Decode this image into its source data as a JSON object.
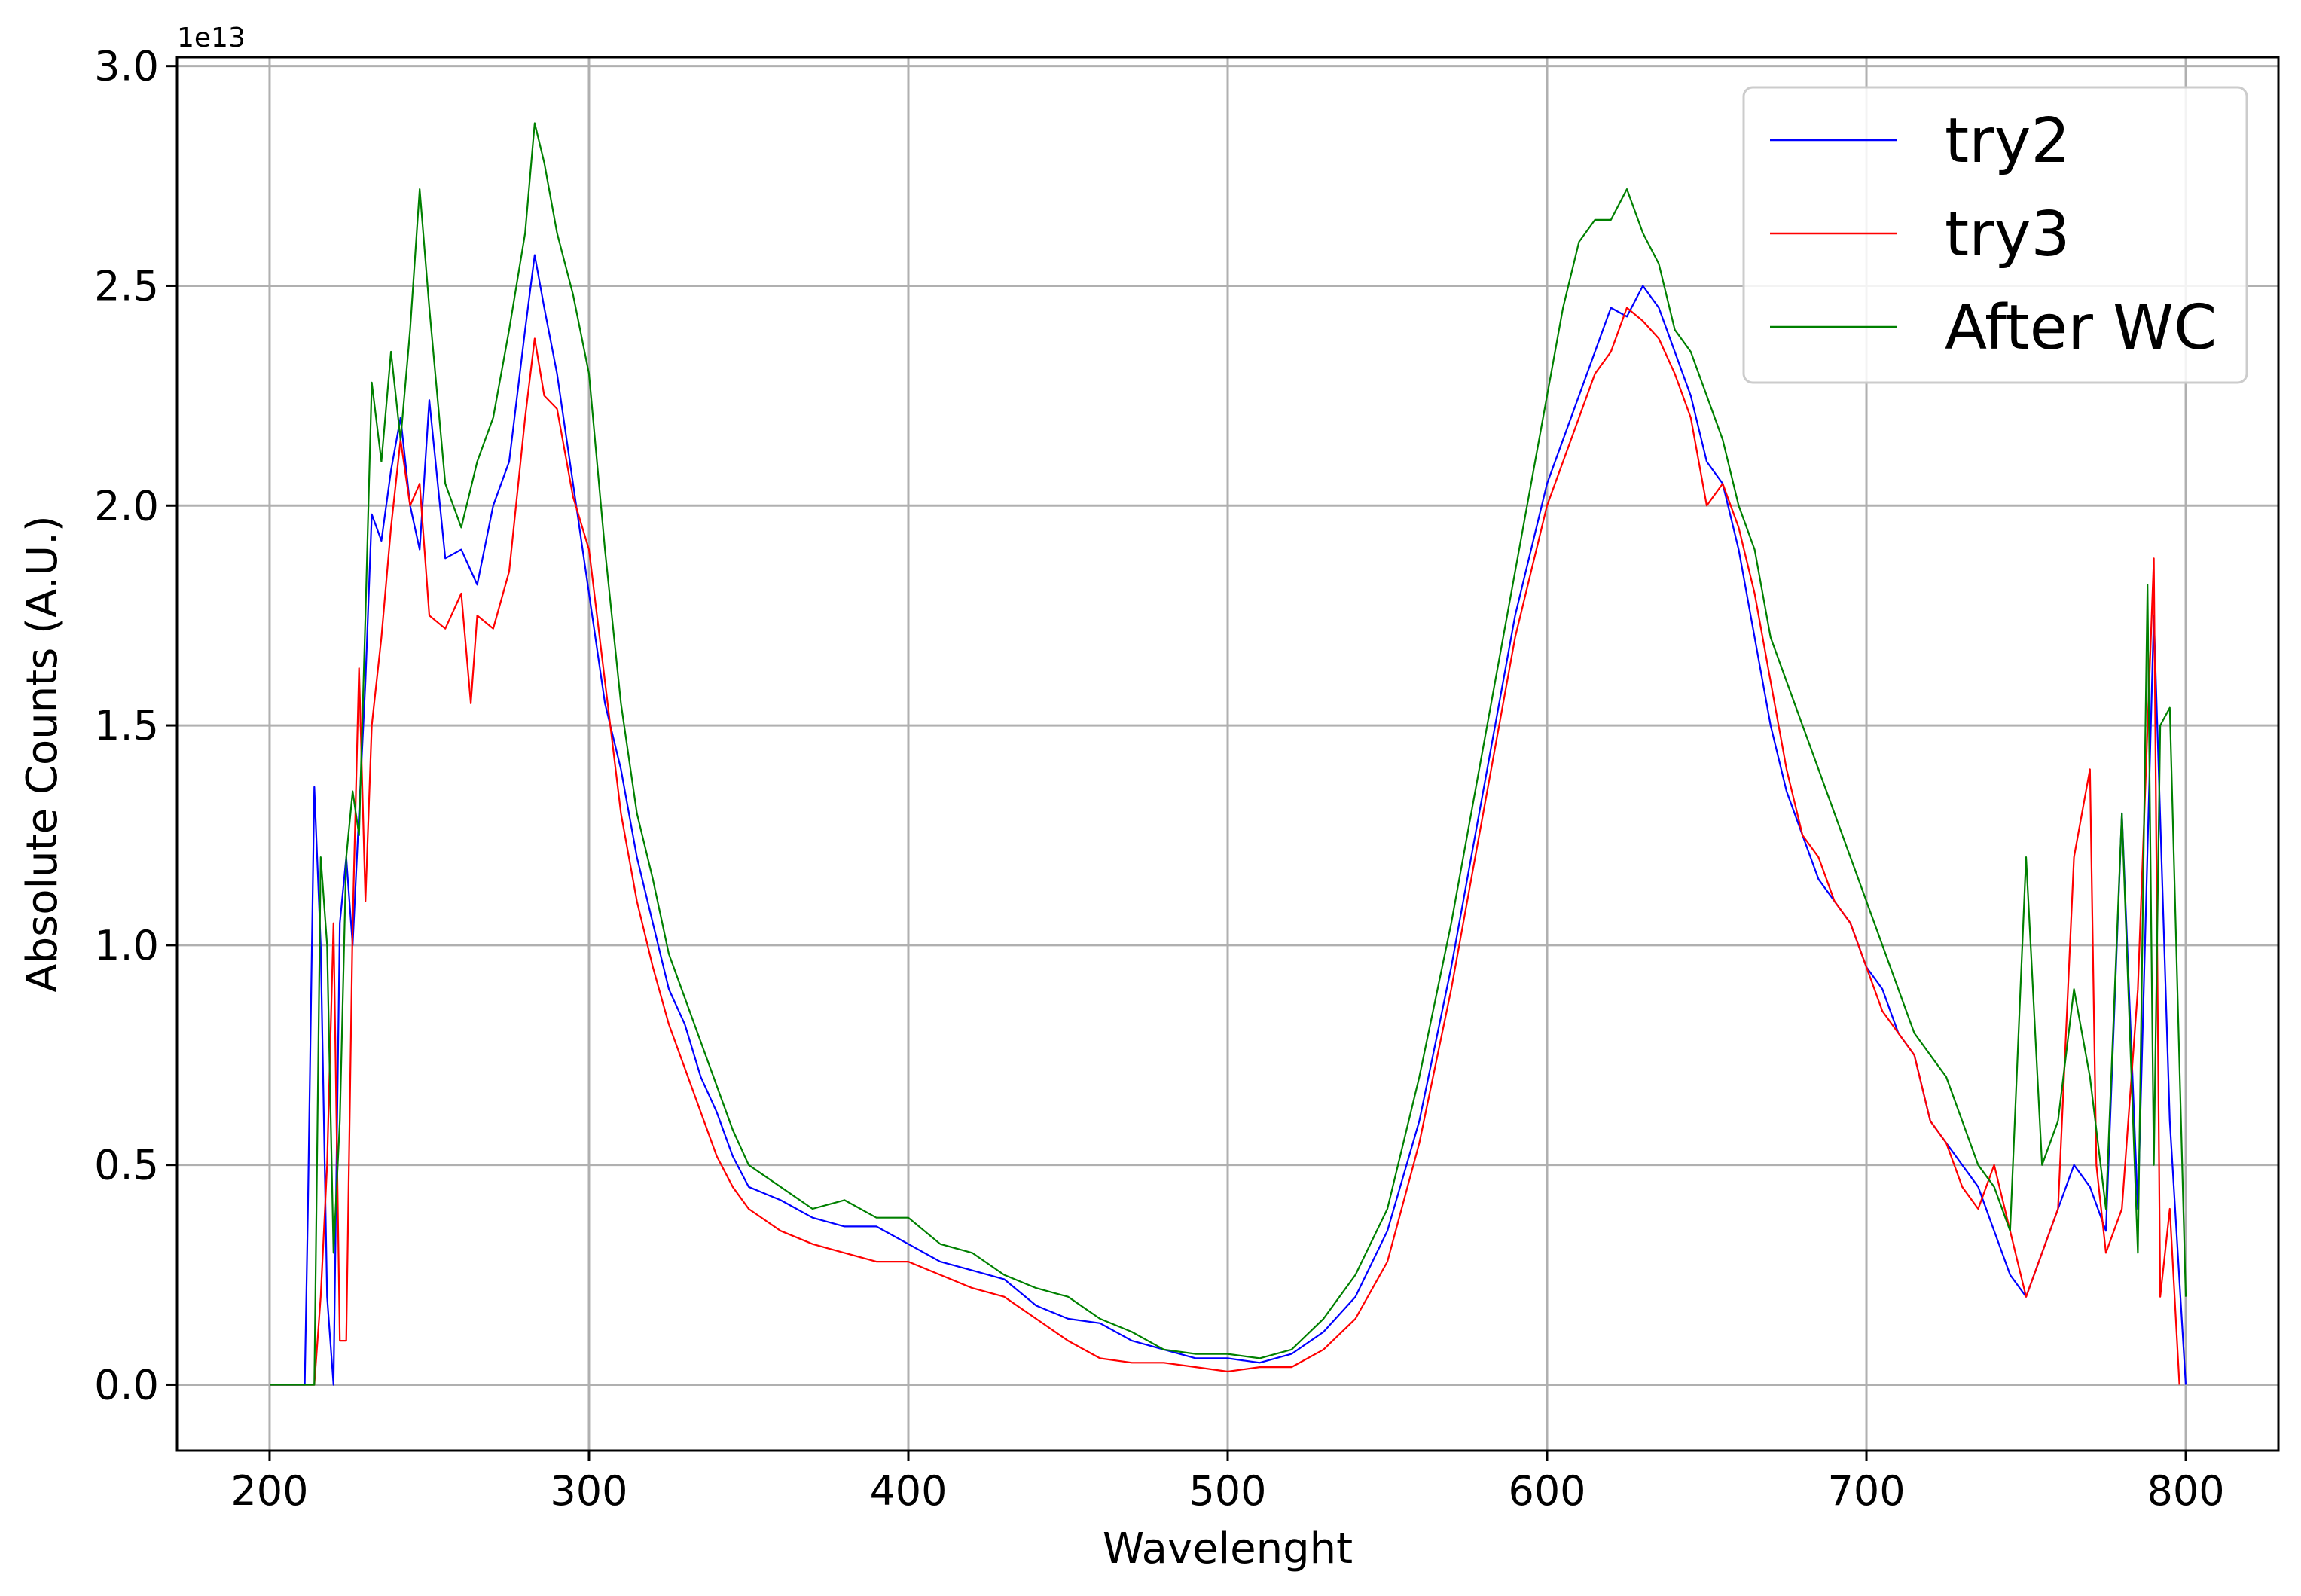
{
  "chart_data": {
    "type": "line",
    "title": "",
    "xlabel": "Wavelenght",
    "ylabel": "Absolute Counts (A.U.)",
    "y_offset_label": "1e13",
    "xlim": [
      171,
      829
    ],
    "ylim": [
      -0.15,
      3.02
    ],
    "xticks": [
      200,
      300,
      400,
      500,
      600,
      700,
      800
    ],
    "yticks": [
      0.0,
      0.5,
      1.0,
      1.5,
      2.0,
      2.5,
      3.0
    ],
    "ytick_labels": [
      "0.0",
      "0.5",
      "1.0",
      "1.5",
      "2.0",
      "2.5",
      "3.0"
    ],
    "grid": true,
    "legend_position": "top-right",
    "series": [
      {
        "name": "try2",
        "color": "#0000ff",
        "x": [
          200,
          211,
          212,
          214,
          216,
          218,
          220,
          222,
          224,
          226,
          228,
          230,
          232,
          235,
          238,
          241,
          244,
          247,
          250,
          255,
          260,
          265,
          270,
          275,
          280,
          283,
          286,
          290,
          295,
          300,
          305,
          310,
          315,
          320,
          325,
          330,
          335,
          340,
          345,
          350,
          360,
          370,
          380,
          390,
          400,
          410,
          420,
          430,
          440,
          450,
          460,
          470,
          480,
          490,
          500,
          510,
          520,
          530,
          540,
          550,
          560,
          570,
          580,
          590,
          600,
          605,
          610,
          615,
          620,
          625,
          630,
          635,
          640,
          645,
          650,
          655,
          660,
          665,
          670,
          675,
          680,
          685,
          690,
          695,
          700,
          705,
          710,
          715,
          720,
          725,
          730,
          735,
          740,
          745,
          750,
          755,
          760,
          765,
          770,
          775,
          780,
          785,
          790,
          795,
          800
        ],
        "y": [
          0.0,
          0.0,
          0.4,
          1.36,
          1.0,
          0.2,
          0.0,
          1.05,
          1.2,
          1.0,
          1.3,
          1.6,
          1.98,
          1.92,
          2.08,
          2.2,
          2.0,
          1.9,
          2.24,
          1.88,
          1.9,
          1.82,
          2.0,
          2.1,
          2.4,
          2.57,
          2.45,
          2.3,
          2.05,
          1.8,
          1.55,
          1.4,
          1.2,
          1.05,
          0.9,
          0.82,
          0.7,
          0.62,
          0.52,
          0.45,
          0.42,
          0.38,
          0.36,
          0.36,
          0.32,
          0.28,
          0.26,
          0.24,
          0.18,
          0.15,
          0.14,
          0.1,
          0.08,
          0.06,
          0.06,
          0.05,
          0.07,
          0.12,
          0.2,
          0.35,
          0.6,
          0.95,
          1.35,
          1.75,
          2.05,
          2.15,
          2.25,
          2.35,
          2.45,
          2.43,
          2.5,
          2.45,
          2.35,
          2.25,
          2.1,
          2.05,
          1.9,
          1.7,
          1.5,
          1.35,
          1.25,
          1.15,
          1.1,
          1.05,
          0.95,
          0.9,
          0.8,
          0.75,
          0.6,
          0.55,
          0.5,
          0.45,
          0.35,
          0.25,
          0.2,
          0.3,
          0.4,
          0.5,
          0.45,
          0.35,
          1.3,
          0.4,
          1.75,
          0.6,
          0.0
        ]
      },
      {
        "name": "try3",
        "color": "#ff0000",
        "x": [
          200,
          214,
          216,
          218,
          220,
          222,
          224,
          226,
          228,
          230,
          232,
          235,
          238,
          241,
          244,
          247,
          250,
          255,
          260,
          263,
          265,
          270,
          275,
          280,
          283,
          286,
          290,
          295,
          300,
          305,
          310,
          315,
          320,
          325,
          330,
          335,
          340,
          345,
          350,
          360,
          370,
          380,
          390,
          400,
          410,
          420,
          430,
          440,
          450,
          460,
          470,
          480,
          490,
          500,
          510,
          520,
          530,
          540,
          550,
          560,
          570,
          580,
          590,
          600,
          605,
          610,
          615,
          620,
          625,
          630,
          635,
          640,
          645,
          650,
          655,
          660,
          665,
          670,
          675,
          680,
          685,
          690,
          695,
          700,
          705,
          710,
          715,
          720,
          725,
          730,
          735,
          740,
          745,
          750,
          755,
          760,
          765,
          770,
          772,
          775,
          780,
          785,
          790,
          792,
          795,
          798
        ],
        "y": [
          0.0,
          0.0,
          0.2,
          0.5,
          1.05,
          0.1,
          0.1,
          1.05,
          1.63,
          1.1,
          1.5,
          1.7,
          1.95,
          2.15,
          2.0,
          2.05,
          1.75,
          1.72,
          1.8,
          1.55,
          1.75,
          1.72,
          1.85,
          2.2,
          2.38,
          2.25,
          2.22,
          2.02,
          1.9,
          1.6,
          1.3,
          1.1,
          0.95,
          0.82,
          0.72,
          0.62,
          0.52,
          0.45,
          0.4,
          0.35,
          0.32,
          0.3,
          0.28,
          0.28,
          0.25,
          0.22,
          0.2,
          0.15,
          0.1,
          0.06,
          0.05,
          0.05,
          0.04,
          0.03,
          0.04,
          0.04,
          0.08,
          0.15,
          0.28,
          0.55,
          0.9,
          1.3,
          1.7,
          2.0,
          2.1,
          2.2,
          2.3,
          2.35,
          2.45,
          2.42,
          2.38,
          2.3,
          2.2,
          2.0,
          2.05,
          1.95,
          1.8,
          1.6,
          1.4,
          1.25,
          1.2,
          1.1,
          1.05,
          0.95,
          0.85,
          0.8,
          0.75,
          0.6,
          0.55,
          0.45,
          0.4,
          0.5,
          0.35,
          0.2,
          0.3,
          0.4,
          1.2,
          1.4,
          0.5,
          0.3,
          0.4,
          0.9,
          1.88,
          0.2,
          0.4,
          0.0
        ]
      },
      {
        "name": "After WC",
        "color": "#008000",
        "x": [
          200,
          214,
          216,
          218,
          220,
          222,
          224,
          226,
          228,
          230,
          232,
          235,
          238,
          241,
          244,
          247,
          250,
          255,
          260,
          265,
          270,
          275,
          280,
          283,
          286,
          290,
          295,
          300,
          305,
          310,
          315,
          320,
          325,
          330,
          335,
          340,
          345,
          350,
          360,
          370,
          380,
          390,
          400,
          410,
          420,
          430,
          440,
          450,
          460,
          470,
          480,
          490,
          500,
          510,
          520,
          530,
          540,
          550,
          560,
          570,
          580,
          590,
          600,
          605,
          610,
          615,
          620,
          625,
          630,
          635,
          640,
          645,
          650,
          655,
          660,
          665,
          670,
          675,
          680,
          685,
          690,
          695,
          700,
          705,
          710,
          715,
          720,
          725,
          730,
          735,
          740,
          745,
          750,
          755,
          760,
          765,
          770,
          775,
          780,
          785,
          788,
          790,
          792,
          795,
          800
        ],
        "y": [
          0.0,
          0.0,
          1.2,
          1.0,
          0.3,
          0.6,
          1.2,
          1.35,
          1.25,
          1.75,
          2.28,
          2.1,
          2.35,
          2.15,
          2.4,
          2.72,
          2.45,
          2.05,
          1.95,
          2.1,
          2.2,
          2.4,
          2.62,
          2.87,
          2.78,
          2.62,
          2.48,
          2.3,
          1.9,
          1.55,
          1.3,
          1.15,
          0.98,
          0.88,
          0.78,
          0.68,
          0.58,
          0.5,
          0.45,
          0.4,
          0.42,
          0.38,
          0.38,
          0.32,
          0.3,
          0.25,
          0.22,
          0.2,
          0.15,
          0.12,
          0.08,
          0.07,
          0.07,
          0.06,
          0.08,
          0.15,
          0.25,
          0.4,
          0.7,
          1.05,
          1.45,
          1.85,
          2.25,
          2.45,
          2.6,
          2.65,
          2.65,
          2.72,
          2.62,
          2.55,
          2.4,
          2.35,
          2.25,
          2.15,
          2.0,
          1.9,
          1.7,
          1.6,
          1.5,
          1.4,
          1.3,
          1.2,
          1.1,
          1.0,
          0.9,
          0.8,
          0.75,
          0.7,
          0.6,
          0.5,
          0.45,
          0.35,
          1.2,
          0.5,
          0.6,
          0.9,
          0.7,
          0.4,
          1.3,
          0.3,
          1.82,
          0.5,
          1.5,
          1.54,
          0.2
        ]
      }
    ]
  }
}
